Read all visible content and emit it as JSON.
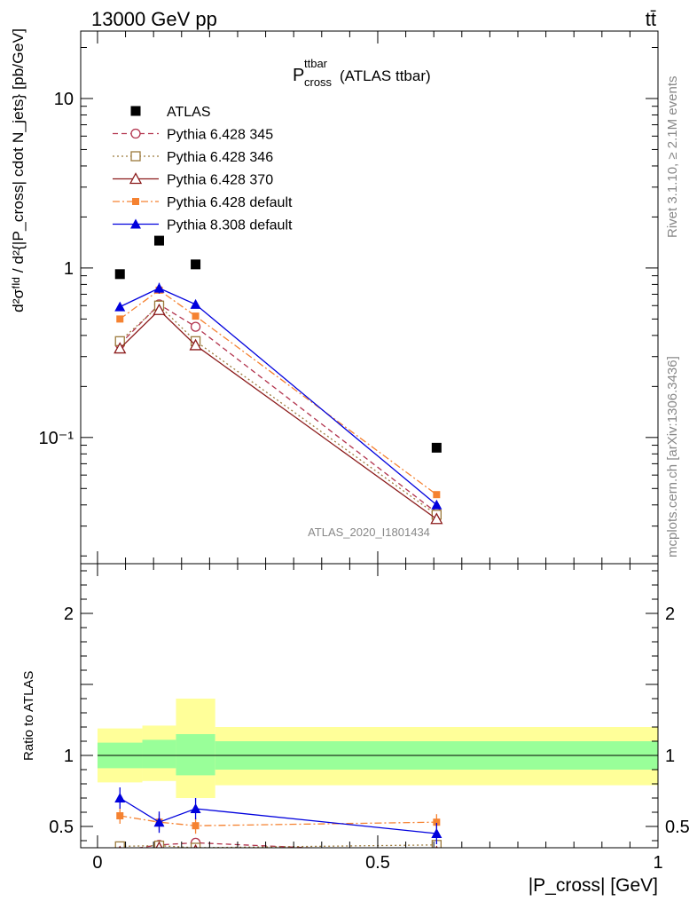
{
  "header": {
    "left": "13000 GeV pp",
    "right": "tt̄"
  },
  "title": {
    "base": "P",
    "sup": "ttbar",
    "sub": "cross",
    "suffix": "(ATLAS ttbar)"
  },
  "watermark": "ATLAS_2020_I1801434",
  "side": {
    "rivet": "Rivet 3.1.10, ≥ 2.1M events",
    "mcplots": "mcplots.cern.ch [arXiv:1306.3436]"
  },
  "ylabel_top": "d²σᶠᴵᵈ / d²{|P_cross| cdot N_jets} [pb/GeV]",
  "ylabel_ratio": "Ratio to ATLAS",
  "xlabel": "|P_cross| [GeV]",
  "colors": {
    "atlas": "#000000",
    "p345": "#b2334d",
    "p346": "#9c7a3c",
    "p370": "#8b1a1a",
    "p6def": "#f58231",
    "p8def": "#0000dd",
    "band_yellow": "#ffff99",
    "band_green": "#99ff99"
  },
  "chart_data": {
    "type": "scatter",
    "x_range": [
      -0.03,
      1.0
    ],
    "main": {
      "yscale": "log",
      "ylim": [
        0.018,
        25
      ],
      "yticks": [
        {
          "v": 0.1,
          "label": "10⁻¹"
        },
        {
          "v": 1,
          "label": "1"
        },
        {
          "v": 10,
          "label": "10"
        }
      ],
      "legend_placement": "top-left",
      "series": [
        {
          "key": "atlas",
          "name": "ATLAS",
          "style": "data",
          "points": [
            {
              "x": 0.04,
              "y": 0.92
            },
            {
              "x": 0.11,
              "y": 1.45
            },
            {
              "x": 0.175,
              "y": 1.05
            },
            {
              "x": 0.605,
              "y": 0.087
            }
          ]
        },
        {
          "key": "p345",
          "name": "Pythia 6.428 345",
          "style": "open-circle",
          "dash": "6,4",
          "points": [
            {
              "x": 0.04,
              "y": 0.355
            },
            {
              "x": 0.11,
              "y": 0.61
            },
            {
              "x": 0.175,
              "y": 0.45
            },
            {
              "x": 0.605,
              "y": 0.036
            }
          ]
        },
        {
          "key": "p346",
          "name": "Pythia 6.428 346",
          "style": "open-square",
          "dash": "2,3",
          "points": [
            {
              "x": 0.04,
              "y": 0.37
            },
            {
              "x": 0.11,
              "y": 0.6
            },
            {
              "x": 0.175,
              "y": 0.37
            },
            {
              "x": 0.605,
              "y": 0.035
            }
          ]
        },
        {
          "key": "p370",
          "name": "Pythia 6.428 370",
          "style": "open-triangle",
          "dash": "",
          "points": [
            {
              "x": 0.04,
              "y": 0.335
            },
            {
              "x": 0.11,
              "y": 0.565
            },
            {
              "x": 0.175,
              "y": 0.35
            },
            {
              "x": 0.605,
              "y": 0.033
            }
          ]
        },
        {
          "key": "p6def",
          "name": "Pythia 6.428 default",
          "style": "filled-square",
          "dash": "8,3,2,3",
          "points": [
            {
              "x": 0.04,
              "y": 0.5
            },
            {
              "x": 0.11,
              "y": 0.74
            },
            {
              "x": 0.175,
              "y": 0.52
            },
            {
              "x": 0.605,
              "y": 0.046
            }
          ]
        },
        {
          "key": "p8def",
          "name": "Pythia 8.308 default",
          "style": "filled-triangle",
          "dash": "",
          "points": [
            {
              "x": 0.04,
              "y": 0.59
            },
            {
              "x": 0.11,
              "y": 0.76
            },
            {
              "x": 0.175,
              "y": 0.61
            },
            {
              "x": 0.605,
              "y": 0.04
            }
          ]
        }
      ]
    },
    "ratio": {
      "ylim": [
        0.35,
        2.35
      ],
      "yticks": [
        {
          "v": 0.5,
          "label": "0.5"
        },
        {
          "v": 1,
          "label": "1"
        },
        {
          "v": 2,
          "label": "2"
        }
      ],
      "xticks": [
        {
          "v": 0,
          "label": "0"
        },
        {
          "v": 0.5,
          "label": "0.5"
        },
        {
          "v": 1,
          "label": "1"
        }
      ],
      "bands": [
        {
          "x0": 0.0,
          "x1": 0.08,
          "y_lo": 0.81,
          "y_hi": 1.19,
          "g_lo": 0.91,
          "g_hi": 1.09
        },
        {
          "x0": 0.08,
          "x1": 0.14,
          "y_lo": 0.82,
          "y_hi": 1.21,
          "g_lo": 0.91,
          "g_hi": 1.11
        },
        {
          "x0": 0.14,
          "x1": 0.21,
          "y_lo": 0.7,
          "y_hi": 1.4,
          "g_lo": 0.86,
          "g_hi": 1.15
        },
        {
          "x0": 0.21,
          "x1": 1.0,
          "y_lo": 0.79,
          "y_hi": 1.2,
          "g_lo": 0.9,
          "g_hi": 1.1
        }
      ],
      "series": [
        {
          "key": "p345",
          "points": [
            {
              "x": 0.04,
              "y": 0.33
            },
            {
              "x": 0.11,
              "y": 0.37
            },
            {
              "x": 0.175,
              "y": 0.385
            },
            {
              "x": 0.605,
              "y": 0.31
            }
          ]
        },
        {
          "key": "p346",
          "points": [
            {
              "x": 0.04,
              "y": 0.36
            },
            {
              "x": 0.11,
              "y": 0.365
            },
            {
              "x": 0.175,
              "y": 0.35
            },
            {
              "x": 0.605,
              "y": 0.37
            }
          ]
        },
        {
          "key": "p370",
          "points": [
            {
              "x": 0.04,
              "y": 0.32
            },
            {
              "x": 0.11,
              "y": 0.35
            },
            {
              "x": 0.175,
              "y": 0.33
            },
            {
              "x": 0.605,
              "y": 0.32
            }
          ]
        },
        {
          "key": "p6def",
          "points": [
            {
              "x": 0.04,
              "y": 0.575
            },
            {
              "x": 0.11,
              "y": 0.53
            },
            {
              "x": 0.175,
              "y": 0.505
            },
            {
              "x": 0.605,
              "y": 0.53
            }
          ]
        },
        {
          "key": "p8def",
          "points": [
            {
              "x": 0.04,
              "y": 0.7
            },
            {
              "x": 0.11,
              "y": 0.53
            },
            {
              "x": 0.175,
              "y": 0.625
            },
            {
              "x": 0.605,
              "y": 0.45
            }
          ]
        }
      ]
    }
  }
}
